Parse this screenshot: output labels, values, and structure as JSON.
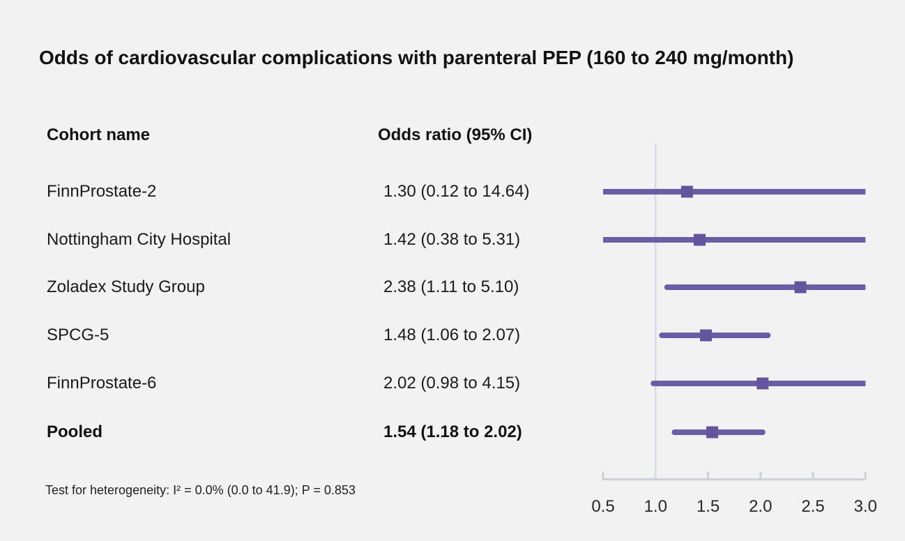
{
  "title": "Odds of cardiovascular complications with parenteral PEP (160 to 240 mg/month)",
  "table": {
    "cohort_header": "Cohort name",
    "or_header": "Odds ratio (95% CI)"
  },
  "footnote": "Test for heterogeneity: I² = 0.0% (0.0 to 41.9); P = 0.853",
  "chart_data": {
    "type": "forest",
    "title": "Odds of cardiovascular complications with parenteral PEP (160 to 240 mg/month)",
    "x_axis": {
      "scale": "linear",
      "min": 0.5,
      "max": 3.0,
      "tick_values": [
        0.5,
        1.0,
        1.5,
        2.0,
        2.5,
        3.0
      ],
      "tick_labels": [
        "0.5",
        "1.0",
        "1.5",
        "2.0",
        "2.5",
        "3.0"
      ],
      "reference_value": 1.0
    },
    "rows": [
      {
        "name": "FinnProstate-2",
        "label": "1.30 (0.12 to 14.64)",
        "or": 1.3,
        "lo": 0.12,
        "hi": 14.64,
        "bold": false
      },
      {
        "name": "Nottingham City Hospital",
        "label": "1.42 (0.38 to 5.31)",
        "or": 1.42,
        "lo": 0.38,
        "hi": 5.31,
        "bold": false
      },
      {
        "name": "Zoladex Study Group",
        "label": "2.38 (1.11 to 5.10)",
        "or": 2.38,
        "lo": 1.11,
        "hi": 5.1,
        "bold": false
      },
      {
        "name": "SPCG-5",
        "label": "1.48 (1.06 to 2.07)",
        "or": 1.48,
        "lo": 1.06,
        "hi": 2.07,
        "bold": false
      },
      {
        "name": "FinnProstate-6",
        "label": "2.02 (0.98 to 4.15)",
        "or": 2.02,
        "lo": 0.98,
        "hi": 4.15,
        "bold": false
      },
      {
        "name": "Pooled",
        "label": "1.54 (1.18 to 2.02)",
        "or": 1.54,
        "lo": 1.18,
        "hi": 2.02,
        "bold": true
      }
    ],
    "heterogeneity_note": "Test for heterogeneity: I² = 0.0% (0.0 to 41.9); P = 0.853",
    "colors": {
      "background": "#f2f2f2",
      "ci_line": "#695daa",
      "marker": "#6454a0",
      "reference_line": "#d6dae2",
      "axis_line": "#cdd2da",
      "text": "#1a1a1a"
    }
  }
}
